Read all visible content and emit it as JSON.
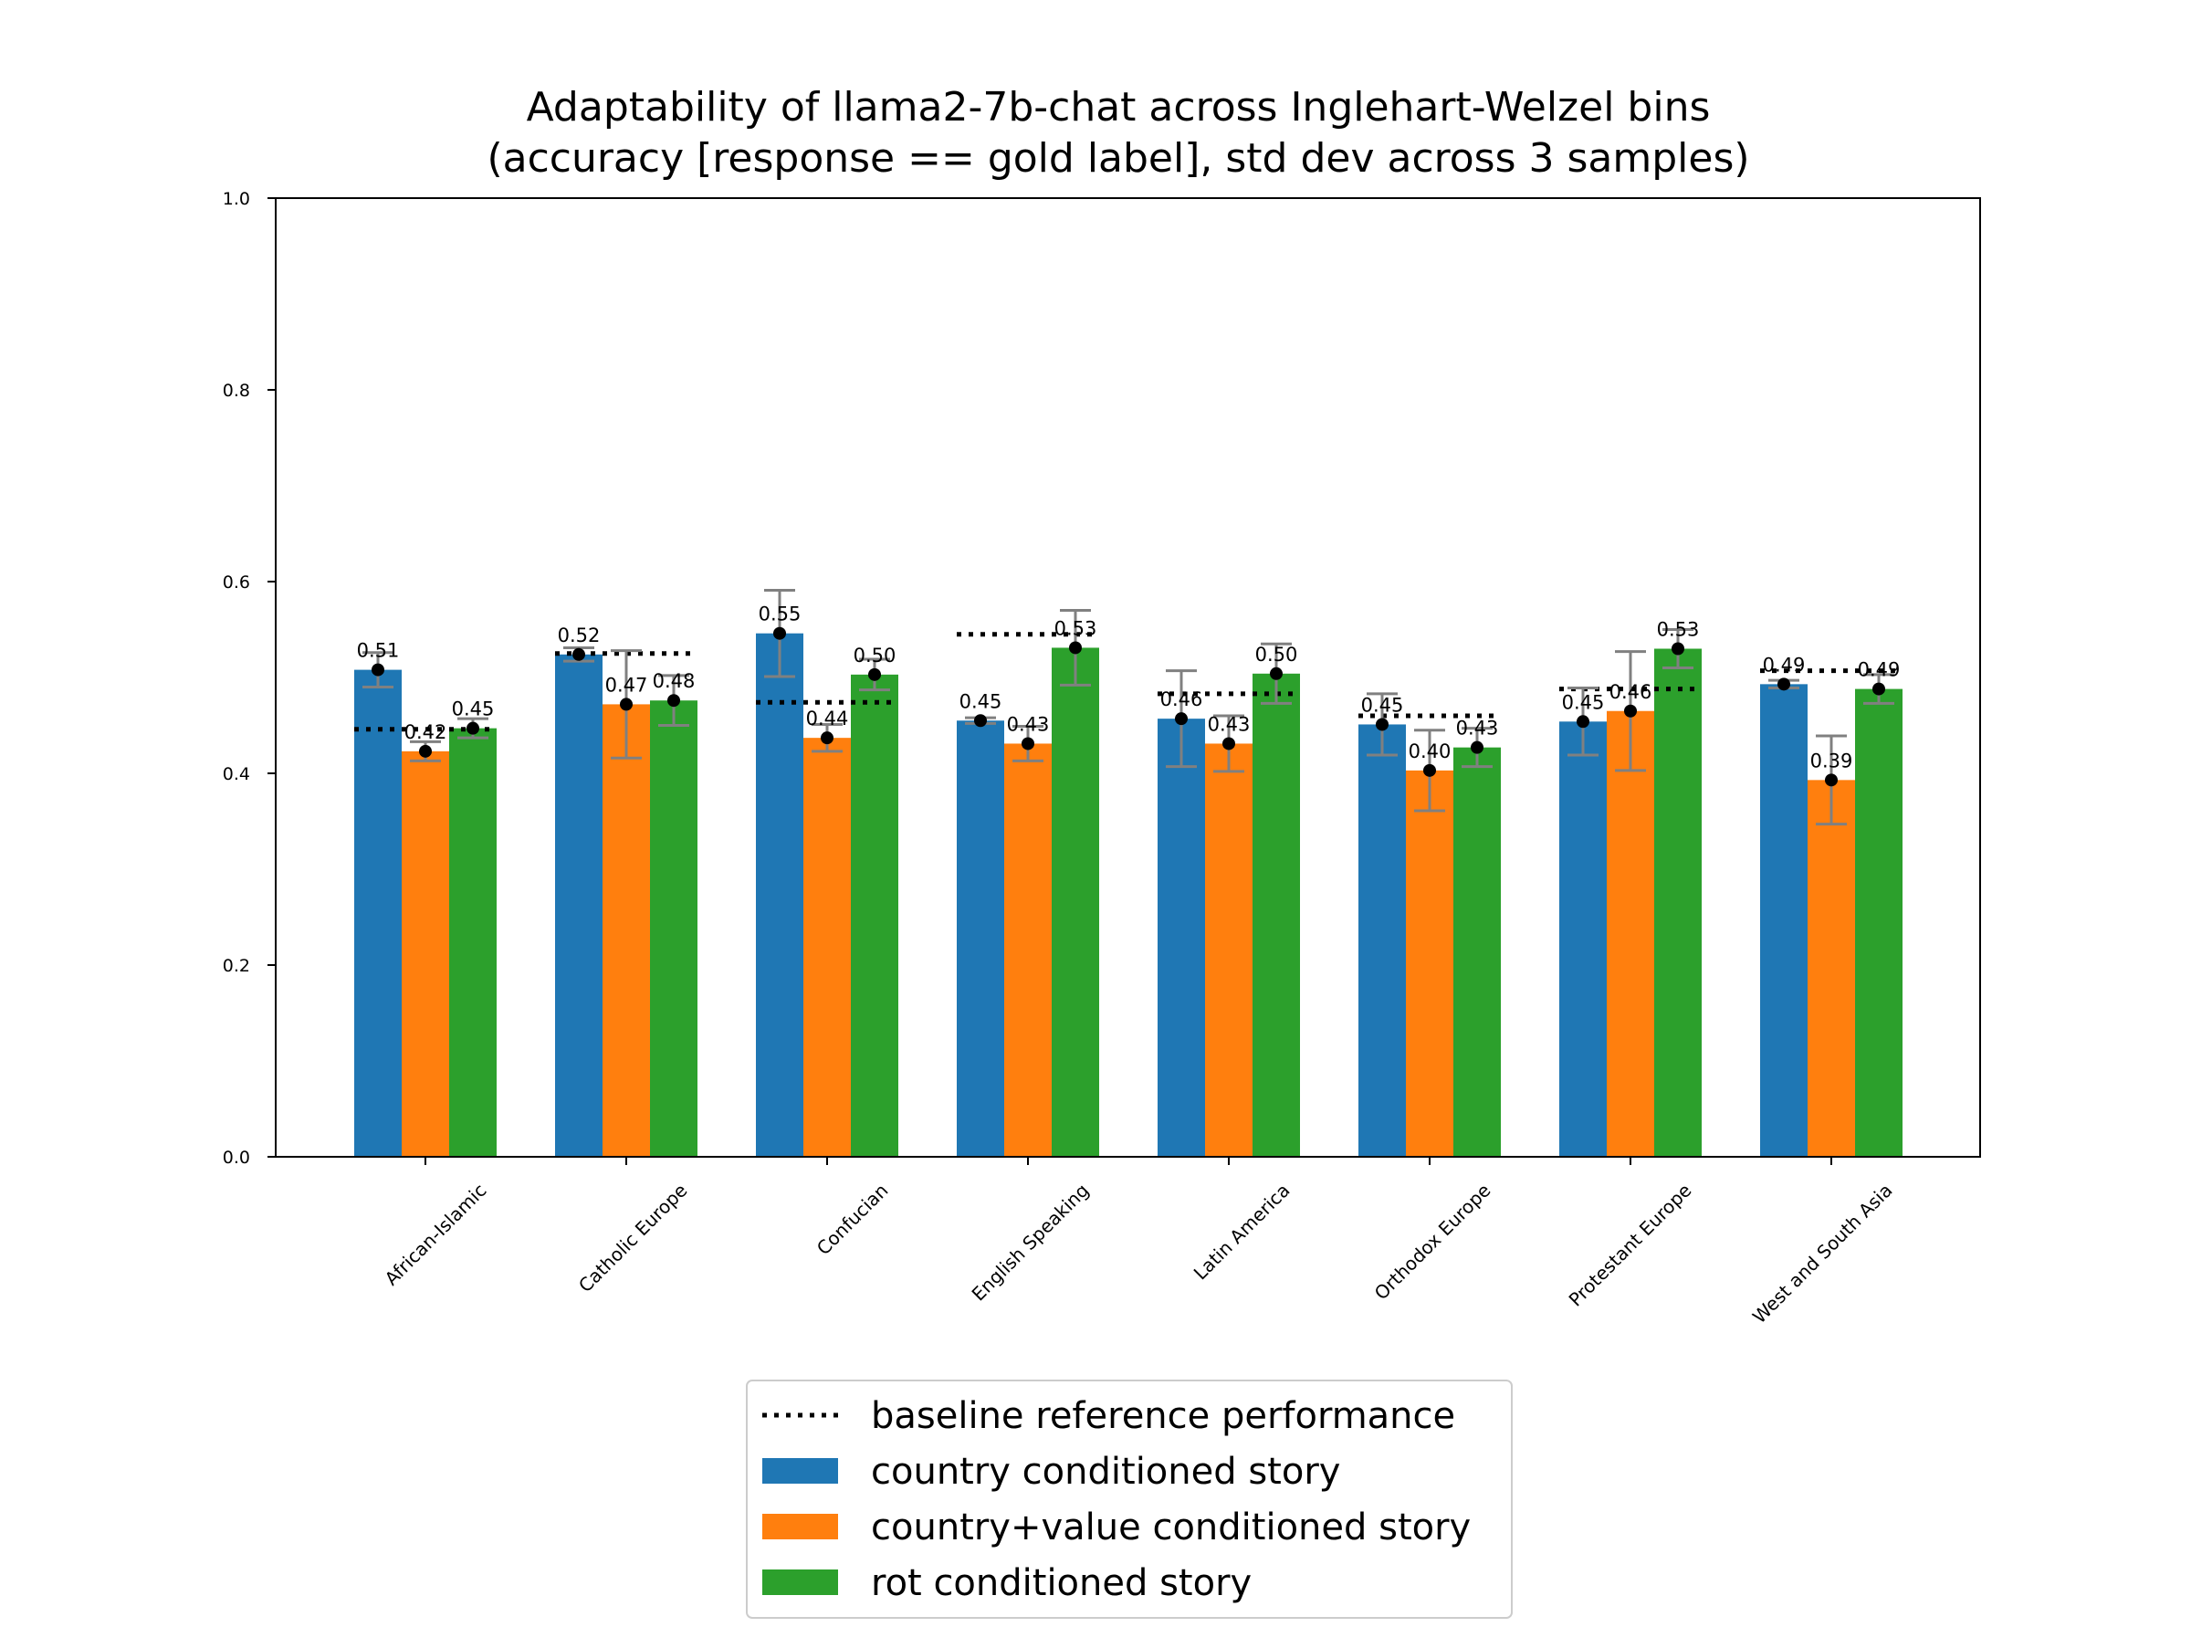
{
  "chart_data": {
    "type": "bar",
    "title_lines": [
      "Adaptability of llama2-7b-chat across Inglehart-Welzel bins",
      "(accuracy [response == gold label], std dev across 3 samples)"
    ],
    "xlabel": "",
    "ylabel": "",
    "ylim": [
      0.0,
      1.0
    ],
    "yticks": [
      0.0,
      0.2,
      0.4,
      0.6,
      0.8,
      1.0
    ],
    "ytick_labels": [
      "0.0",
      "0.2",
      "0.4",
      "0.6",
      "0.8",
      "1.0"
    ],
    "grid": false,
    "legend_position": "bottom-center, below plot",
    "categories": [
      "African-Islamic",
      "Catholic Europe",
      "Confucian",
      "English Speaking",
      "Latin America",
      "Orthodox Europe",
      "Protestant Europe",
      "West and South Asia"
    ],
    "baseline": {
      "name": "baseline reference performance",
      "values": [
        0.446,
        0.525,
        0.474,
        0.545,
        0.483,
        0.46,
        0.488,
        0.507
      ]
    },
    "series": [
      {
        "name": "country conditioned story",
        "color": "#1f77b4",
        "values": [
          0.508,
          0.524,
          0.546,
          0.455,
          0.457,
          0.451,
          0.454,
          0.493
        ],
        "std": [
          0.018,
          0.007,
          0.045,
          0.003,
          0.05,
          0.032,
          0.035,
          0.004
        ],
        "labels": [
          "0.51",
          "0.52",
          "0.55",
          "0.45",
          "0.46",
          "0.45",
          "0.45",
          "0.49"
        ]
      },
      {
        "name": "country+value conditioned story",
        "color": "#ff7f0e",
        "values": [
          0.423,
          0.472,
          0.437,
          0.431,
          0.431,
          0.403,
          0.465,
          0.393
        ],
        "std": [
          0.01,
          0.056,
          0.014,
          0.018,
          0.029,
          0.042,
          0.062,
          0.046
        ],
        "labels": [
          "0.42",
          "0.47",
          "0.44",
          "0.43",
          "0.43",
          "0.40",
          "0.46",
          "0.39"
        ]
      },
      {
        "name": "rot conditioned story",
        "color": "#2ca02c",
        "values": [
          0.447,
          0.476,
          0.503,
          0.531,
          0.504,
          0.427,
          0.53,
          0.488
        ],
        "std": [
          0.01,
          0.026,
          0.016,
          0.039,
          0.031,
          0.02,
          0.02,
          0.015
        ],
        "labels": [
          "0.45",
          "0.48",
          "0.50",
          "0.53",
          "0.50",
          "0.43",
          "0.53",
          "0.49"
        ]
      }
    ],
    "errorbar_color": "#808080",
    "point_color": "#000000"
  }
}
